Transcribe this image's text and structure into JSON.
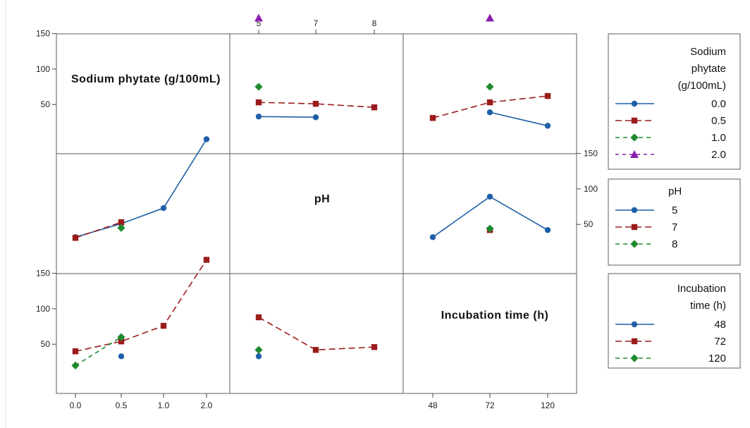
{
  "chart_data": {
    "type": "line",
    "title": "",
    "factors": [
      {
        "name": "Sodium phytate (g/100mL)",
        "levels": [
          "0.0",
          "0.5",
          "1.0",
          "2.0"
        ]
      },
      {
        "name": "pH",
        "levels": [
          "5",
          "7",
          "8"
        ]
      },
      {
        "name": "Incubation time (h)",
        "levels": [
          "48",
          "72",
          "120"
        ]
      }
    ],
    "y_ticks": [
      "50",
      "100",
      "150"
    ],
    "x_tick_labels": {
      "sodium_phytate": [
        "0.0",
        "0.5",
        "1.0",
        "2.0"
      ],
      "ph": [
        "5",
        "7",
        "8"
      ],
      "incubation_time": [
        "48",
        "72",
        "120"
      ]
    },
    "panels": [
      {
        "id": "ph-by-sodium-phytate",
        "x_factor": "pH",
        "trace_factor": "Sodium phytate (g/100mL)",
        "series": [
          {
            "name": "0.0",
            "values": [
              33,
              32,
              null
            ]
          },
          {
            "name": "0.5",
            "values": [
              53,
              51,
              46
            ]
          },
          {
            "name": "1.0",
            "values": [
              75,
              null,
              null
            ]
          },
          {
            "name": "2.0",
            "values": [
              172,
              null,
              null
            ]
          }
        ]
      },
      {
        "id": "time-by-sodium-phytate",
        "x_factor": "Incubation time (h)",
        "trace_factor": "Sodium phytate (g/100mL)",
        "series": [
          {
            "name": "0.0",
            "values": [
              null,
              39,
              20
            ]
          },
          {
            "name": "0.5",
            "values": [
              31,
              53,
              62
            ]
          },
          {
            "name": "1.0",
            "values": [
              null,
              75,
              null
            ]
          },
          {
            "name": "2.0",
            "values": [
              null,
              172,
              null
            ]
          }
        ]
      },
      {
        "id": "sodium-phytate-by-ph",
        "x_factor": "Sodium phytate (g/100mL)",
        "trace_factor": "pH",
        "series": [
          {
            "name": "5",
            "values": [
              32,
              51,
              73,
              170
            ]
          },
          {
            "name": "7",
            "values": [
              31,
              53,
              null,
              null
            ]
          },
          {
            "name": "8",
            "values": [
              null,
              45,
              null,
              null
            ]
          }
        ]
      },
      {
        "id": "time-by-ph",
        "x_factor": "Incubation time (h)",
        "trace_factor": "pH",
        "series": [
          {
            "name": "5",
            "values": [
              32,
              89,
              42
            ]
          },
          {
            "name": "7",
            "values": [
              null,
              42,
              null
            ]
          },
          {
            "name": "8",
            "values": [
              null,
              44,
              null
            ]
          }
        ]
      },
      {
        "id": "sodium-phytate-by-time",
        "x_factor": "Sodium phytate (g/100mL)",
        "trace_factor": "Incubation time (h)",
        "series": [
          {
            "name": "48",
            "values": [
              null,
              33,
              null,
              null
            ]
          },
          {
            "name": "72",
            "values": [
              40,
              54,
              76,
              169
            ]
          },
          {
            "name": "120",
            "values": [
              20,
              60,
              null,
              null
            ]
          }
        ]
      },
      {
        "id": "ph-by-time",
        "x_factor": "pH",
        "trace_factor": "Incubation time (h)",
        "series": [
          {
            "name": "48",
            "values": [
              33,
              null,
              null
            ]
          },
          {
            "name": "72",
            "values": [
              88,
              42,
              46
            ]
          },
          {
            "name": "120",
            "values": [
              42,
              null,
              null
            ]
          }
        ]
      }
    ],
    "legends": [
      {
        "title_lines": [
          "Sodium",
          "phytate",
          "(g/100mL)"
        ],
        "entries": [
          "0.0",
          "0.5",
          "1.0",
          "2.0"
        ]
      },
      {
        "title_lines": [
          "pH"
        ],
        "entries": [
          "5",
          "7",
          "8"
        ]
      },
      {
        "title_lines": [
          "Incubation",
          "time (h)"
        ],
        "entries": [
          "48",
          "72",
          "120"
        ]
      }
    ],
    "grid": false
  },
  "colors": {
    "series1": "#1f5fa8",
    "series2": "#9b1c1c",
    "series3": "#1e8a2e",
    "series4": "#8a1fb0",
    "frame": "#777777"
  },
  "markers": [
    "circle",
    "square",
    "diamond",
    "triangle"
  ]
}
